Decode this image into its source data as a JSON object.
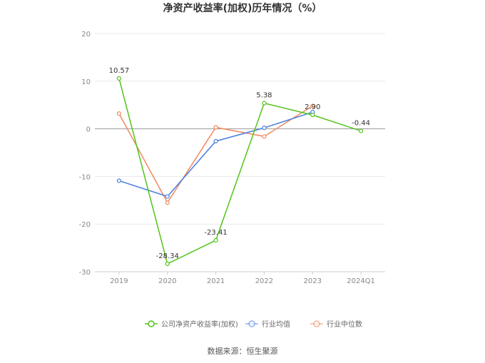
{
  "chart_data": {
    "type": "line",
    "title": "净资产收益率(加权)历年情况（%）",
    "categories": [
      "2019",
      "2020",
      "2021",
      "2022",
      "2023",
      "2024Q1"
    ],
    "ylim": [
      -30,
      20
    ],
    "yticks": [
      20,
      10,
      0,
      -10,
      -20,
      -30
    ],
    "grid": true,
    "legend_position": "bottom",
    "series": [
      {
        "name": "公司净资产收益率(加权)",
        "color": "#52c41a",
        "values": [
          10.57,
          -28.34,
          -23.41,
          5.38,
          2.9,
          -0.44
        ],
        "labels": [
          "10.57",
          "-28.34",
          "-23.41",
          "5.38",
          "2.90",
          "-0.44"
        ]
      },
      {
        "name": "行业均值",
        "color": "#4a7fe0",
        "values": [
          -10.9,
          -14.2,
          -2.6,
          0.2,
          3.5,
          null
        ]
      },
      {
        "name": "行业中位数",
        "color": "#f08a5d",
        "values": [
          3.2,
          -15.5,
          0.3,
          -1.6,
          4.8,
          null
        ]
      }
    ]
  },
  "source": "数据来源：恒生聚源"
}
